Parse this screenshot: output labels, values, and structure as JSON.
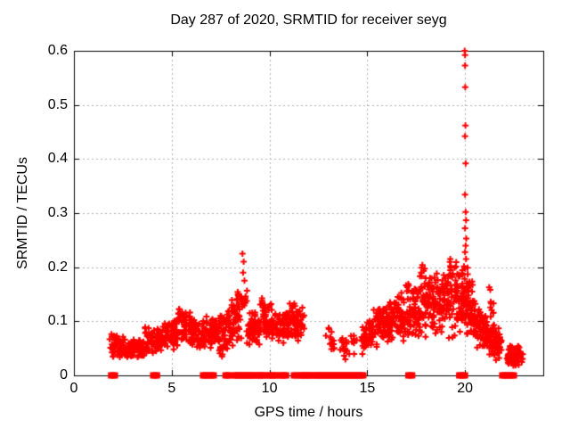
{
  "chart_data": {
    "type": "scatter",
    "title": "Day 287 of 2020, SRMTID for receiver seyg",
    "xlabel": "GPS time / hours",
    "ylabel": "SRMTID / TECUs",
    "xlim": [
      0,
      24
    ],
    "ylim": [
      0,
      0.6
    ],
    "xticks": [
      0,
      5,
      10,
      15,
      20
    ],
    "yticks": [
      0,
      0.1,
      0.2,
      0.3,
      0.4,
      0.5,
      0.6
    ],
    "grid": true,
    "grid_style": "dashed",
    "legend": "none",
    "colors": {
      "marker": "#ff0000",
      "grid": "#b4b4b4",
      "axis": "#000000",
      "background": "#ffffff",
      "text": "#000000"
    },
    "marker": {
      "symbol": "plus",
      "size": 7,
      "line_width": 2
    },
    "zero_marker": {
      "symbol": "filled-square",
      "size": 7
    },
    "series_name": "SRMTID",
    "clusters": [
      [
        1.85,
        2.65,
        60,
        0.032,
        0.08,
        0.03,
        0.072
      ],
      [
        2.65,
        3.6,
        85,
        0.025,
        0.065,
        0.03,
        0.07
      ],
      [
        3.6,
        4.5,
        75,
        0.03,
        0.09,
        0.035,
        0.085
      ],
      [
        4.5,
        5.3,
        70,
        0.04,
        0.1,
        0.045,
        0.105
      ],
      [
        5.3,
        5.95,
        60,
        0.05,
        0.145,
        0.05,
        0.12
      ],
      [
        5.95,
        6.7,
        65,
        0.04,
        0.11,
        0.04,
        0.1
      ],
      [
        6.7,
        7.35,
        60,
        0.045,
        0.115,
        0.05,
        0.11
      ],
      [
        7.35,
        8.1,
        70,
        0.02,
        0.125,
        0.045,
        0.125
      ],
      [
        8.1,
        8.55,
        45,
        0.05,
        0.15,
        0.06,
        0.16
      ],
      [
        8.55,
        8.85,
        12,
        0.1,
        0.18,
        0.1,
        0.17
      ],
      [
        8.85,
        9.55,
        60,
        0.05,
        0.12,
        0.05,
        0.115
      ],
      [
        9.55,
        10.25,
        65,
        0.065,
        0.145,
        0.06,
        0.13
      ],
      [
        10.25,
        10.95,
        60,
        0.05,
        0.115,
        0.06,
        0.12
      ],
      [
        10.95,
        11.75,
        70,
        0.06,
        0.135,
        0.065,
        0.13
      ],
      [
        12.9,
        13.4,
        14,
        0.03,
        0.09,
        0.03,
        0.085
      ],
      [
        13.6,
        14.1,
        16,
        0.025,
        0.085,
        0.025,
        0.08
      ],
      [
        14.15,
        14.45,
        8,
        0.03,
        0.08,
        0.03,
        0.07
      ],
      [
        14.7,
        15.35,
        55,
        0.03,
        0.1,
        0.045,
        0.11
      ],
      [
        15.35,
        16.1,
        70,
        0.05,
        0.13,
        0.05,
        0.14
      ],
      [
        16.1,
        16.9,
        75,
        0.05,
        0.15,
        0.06,
        0.16
      ],
      [
        16.9,
        17.7,
        75,
        0.06,
        0.19,
        0.06,
        0.16
      ],
      [
        17.7,
        18.35,
        70,
        0.06,
        0.215,
        0.07,
        0.18
      ],
      [
        18.35,
        19.2,
        85,
        0.07,
        0.19,
        0.08,
        0.185
      ],
      [
        19.2,
        19.95,
        80,
        0.06,
        0.23,
        0.07,
        0.2
      ],
      [
        19.95,
        20.5,
        75,
        0.07,
        0.22,
        0.06,
        0.16
      ],
      [
        20.5,
        21.1,
        65,
        0.05,
        0.13,
        0.04,
        0.11
      ],
      [
        21.1,
        21.85,
        70,
        0.03,
        0.1,
        0.025,
        0.09
      ],
      [
        21.25,
        21.45,
        10,
        0.1,
        0.17,
        0.1,
        0.17
      ],
      [
        22.15,
        22.75,
        70,
        0.015,
        0.06,
        0.015,
        0.055
      ],
      [
        22.6,
        22.95,
        12,
        0.02,
        0.05,
        0.02,
        0.045
      ]
    ],
    "outlier_points": [
      [
        19.98,
        0.6
      ],
      [
        20.0,
        0.592
      ],
      [
        20.0,
        0.573
      ],
      [
        20.01,
        0.533
      ],
      [
        20.02,
        0.462
      ],
      [
        20.0,
        0.442
      ],
      [
        20.03,
        0.392
      ],
      [
        20.0,
        0.334
      ],
      [
        20.03,
        0.302
      ],
      [
        20.05,
        0.287
      ],
      [
        20.0,
        0.272
      ],
      [
        20.06,
        0.253
      ],
      [
        20.03,
        0.24
      ],
      [
        20.0,
        0.228
      ],
      [
        20.05,
        0.215
      ],
      [
        8.62,
        0.225
      ],
      [
        8.68,
        0.21
      ],
      [
        8.65,
        0.19
      ],
      [
        8.72,
        0.175
      ]
    ],
    "zero_segments": [
      [
        1.9,
        2.15
      ],
      [
        4.05,
        4.3
      ],
      [
        6.6,
        6.85
      ],
      [
        6.95,
        7.15
      ],
      [
        7.75,
        8.0
      ],
      [
        8.2,
        9.2
      ],
      [
        9.35,
        9.75
      ],
      [
        9.95,
        10.35
      ],
      [
        10.55,
        10.9
      ],
      [
        11.25,
        11.4
      ],
      [
        11.55,
        12.15
      ],
      [
        12.3,
        12.5
      ],
      [
        12.6,
        13.75
      ],
      [
        13.8,
        14.3
      ],
      [
        14.4,
        14.85
      ],
      [
        17.1,
        17.3
      ],
      [
        19.7,
        20.05
      ],
      [
        21.9,
        22.5
      ]
    ]
  }
}
